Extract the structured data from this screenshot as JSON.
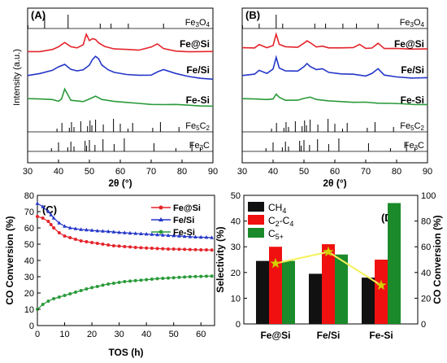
{
  "chart_data": [
    {
      "id": "A",
      "type": "line",
      "panel_label": "(A)",
      "xlabel": "2θ (°)",
      "ylabel": "Intensity (a.u.)",
      "xlim": [
        30,
        90
      ],
      "x_ticks": [
        "30",
        "40",
        "50",
        "60",
        "70",
        "80",
        "90"
      ],
      "series": [
        {
          "name": "Fe@Si",
          "color": "#e4242b",
          "x": [
            30,
            34,
            38,
            40,
            42,
            44,
            46,
            48,
            49,
            50,
            51,
            52,
            53,
            55,
            58,
            62,
            66,
            70,
            72,
            74,
            78,
            82,
            86,
            90
          ],
          "y": [
            0.25,
            0.28,
            0.35,
            0.45,
            0.62,
            0.45,
            0.42,
            0.55,
            0.95,
            0.7,
            0.78,
            0.72,
            0.6,
            0.45,
            0.38,
            0.34,
            0.32,
            0.45,
            0.58,
            0.4,
            0.3,
            0.28,
            0.27,
            0.26
          ]
        },
        {
          "name": "Fe/Si",
          "color": "#2436c8",
          "x": [
            30,
            34,
            38,
            40,
            42,
            44,
            46,
            48,
            50,
            51,
            52,
            53,
            54,
            56,
            58,
            62,
            66,
            70,
            72,
            74,
            78,
            82,
            86,
            90
          ],
          "y": [
            0.35,
            0.4,
            0.5,
            0.62,
            0.72,
            0.55,
            0.48,
            0.52,
            0.7,
            0.85,
            0.95,
            0.9,
            0.7,
            0.55,
            0.45,
            0.38,
            0.35,
            0.38,
            0.45,
            0.55,
            0.4,
            0.3,
            0.25,
            0.22
          ]
        },
        {
          "name": "Fe-Si",
          "color": "#2a9a3a",
          "x": [
            30,
            34,
            38,
            40,
            41,
            42,
            44,
            48,
            50,
            52,
            54,
            58,
            62,
            66,
            70,
            74,
            78,
            82,
            86,
            90
          ],
          "y": [
            0.5,
            0.48,
            0.45,
            0.42,
            0.48,
            0.85,
            0.45,
            0.4,
            0.5,
            0.58,
            0.45,
            0.38,
            0.35,
            0.32,
            0.3,
            0.3,
            0.28,
            0.25,
            0.25,
            0.22
          ]
        }
      ],
      "reference_patterns": [
        {
          "name": "Fe3O4",
          "x": [
            30.1,
            35.5,
            43.1,
            53.5,
            57.0,
            62.6,
            74.0
          ]
        },
        {
          "name": "Fe5C2",
          "x": [
            39.5,
            41.1,
            43.5,
            44.2,
            45.0,
            47.2,
            49.4,
            50.2,
            50.8,
            52.0,
            54.5,
            57.8,
            60.0,
            62.5,
            64.0,
            70.5,
            73.0,
            79.0
          ]
        },
        {
          "name": "Fe3C",
          "x": [
            37.7,
            40.0,
            43.0,
            44.0,
            45.0,
            48.6,
            49.1,
            50.0,
            51.8,
            54.4,
            58.0,
            61.3,
            70.9,
            78.0,
            83.2,
            85.9
          ]
        }
      ]
    },
    {
      "id": "B",
      "type": "line",
      "panel_label": "(B)",
      "xlabel": "2θ (°)",
      "ylabel": "",
      "xlim": [
        30,
        90
      ],
      "x_ticks": [
        "30",
        "40",
        "50",
        "60",
        "70",
        "80",
        "90"
      ],
      "series": [
        {
          "name": "Fe@Si",
          "color": "#e4242b",
          "x": [
            30,
            34,
            35.5,
            38,
            40,
            41,
            42,
            44,
            48,
            50,
            51,
            52,
            54,
            56,
            58,
            62,
            66,
            68,
            70,
            72,
            74,
            76,
            80,
            85,
            90
          ],
          "y": [
            0.4,
            0.42,
            0.55,
            0.42,
            0.5,
            0.92,
            0.55,
            0.45,
            0.45,
            0.6,
            0.7,
            0.6,
            0.45,
            0.48,
            0.42,
            0.4,
            0.42,
            0.55,
            0.4,
            0.42,
            0.6,
            0.4,
            0.38,
            0.37,
            0.36
          ]
        },
        {
          "name": "Fe/Si",
          "color": "#2436c8",
          "x": [
            30,
            34,
            35.5,
            38,
            40,
            41,
            42,
            44,
            48,
            50,
            51,
            52,
            54,
            56,
            58,
            62,
            66,
            70,
            72,
            74,
            76,
            80,
            85,
            90
          ],
          "y": [
            0.35,
            0.38,
            0.5,
            0.4,
            0.55,
            0.92,
            0.6,
            0.5,
            0.48,
            0.65,
            0.72,
            0.62,
            0.55,
            0.58,
            0.45,
            0.4,
            0.38,
            0.35,
            0.4,
            0.58,
            0.38,
            0.3,
            0.28,
            0.27
          ]
        },
        {
          "name": "Fe-Si",
          "color": "#2a9a3a",
          "x": [
            30,
            34,
            38,
            40,
            41,
            42,
            44,
            48,
            50,
            52,
            54,
            58,
            62,
            66,
            70,
            74,
            78,
            82,
            86,
            90
          ],
          "y": [
            0.5,
            0.48,
            0.45,
            0.5,
            0.65,
            0.55,
            0.45,
            0.45,
            0.52,
            0.55,
            0.45,
            0.4,
            0.38,
            0.36,
            0.38,
            0.35,
            0.32,
            0.3,
            0.3,
            0.28
          ]
        }
      ],
      "reference_patterns": [
        {
          "name": "Fe3O4",
          "x": [
            30.1,
            35.5,
            41.0,
            43.1,
            53.5,
            57.0,
            62.6,
            67.0,
            74.0
          ]
        },
        {
          "name": "Fe5C2",
          "x": [
            39.5,
            41.1,
            43.5,
            44.2,
            45.0,
            47.2,
            49.4,
            50.2,
            50.8,
            52.0,
            54.5,
            57.8,
            60.0,
            62.5,
            64.0,
            70.5,
            73.0,
            79.0
          ]
        },
        {
          "name": "Fe3C",
          "x": [
            37.7,
            40.0,
            43.0,
            44.0,
            45.0,
            48.6,
            49.1,
            50.0,
            51.8,
            54.4,
            58.0,
            61.3,
            70.9,
            78.0,
            83.2,
            85.9
          ]
        }
      ]
    },
    {
      "id": "C",
      "type": "line",
      "panel_label": "(C)",
      "xlabel": "TOS (h)",
      "ylabel": "CO Conversion (%)",
      "xlim": [
        0,
        65
      ],
      "ylim": [
        0,
        80
      ],
      "x_ticks": [
        "0",
        "10",
        "20",
        "30",
        "40",
        "50",
        "60"
      ],
      "y_ticks": [
        "0",
        "10",
        "20",
        "30",
        "40",
        "50",
        "60",
        "70",
        "80"
      ],
      "legend_position": "top-right",
      "series": [
        {
          "name": "Fe@Si",
          "color": "#e4242b",
          "marker": "circle",
          "x": [
            0,
            2,
            4,
            5,
            6,
            8,
            10,
            12,
            14,
            16,
            18,
            20,
            22,
            24,
            26,
            28,
            30,
            32,
            34,
            36,
            38,
            40,
            42,
            44,
            46,
            48,
            50,
            52,
            54,
            56,
            58,
            60,
            62,
            64
          ],
          "y": [
            67,
            66,
            64,
            62,
            60,
            57,
            55,
            54,
            53,
            52,
            51.5,
            51,
            50.5,
            50,
            49.5,
            49,
            48.8,
            48.5,
            48.3,
            48,
            47.8,
            47.6,
            47.5,
            47.3,
            47.2,
            47,
            47,
            46.9,
            46.8,
            46.7,
            46.6,
            46.5,
            46.5,
            46.4
          ]
        },
        {
          "name": "Fe/Si",
          "color": "#2436c8",
          "marker": "triangle",
          "x": [
            0,
            2,
            4,
            5,
            6,
            8,
            10,
            12,
            14,
            16,
            18,
            20,
            22,
            24,
            26,
            28,
            30,
            32,
            34,
            36,
            38,
            40,
            42,
            44,
            46,
            48,
            50,
            52,
            54,
            56,
            58,
            60,
            62,
            64
          ],
          "y": [
            75,
            73,
            70,
            68,
            66,
            63,
            61,
            60,
            59.5,
            59,
            58.8,
            58.5,
            58.2,
            58,
            57.8,
            57.5,
            57.2,
            57,
            56.8,
            56.6,
            56.4,
            56.2,
            56,
            55.8,
            55.6,
            55.4,
            55.2,
            55,
            54.8,
            54.6,
            54.4,
            54.3,
            54.2,
            54
          ]
        },
        {
          "name": "Fe-Si",
          "color": "#2a9a3a",
          "marker": "circle",
          "x": [
            0,
            2,
            4,
            6,
            8,
            10,
            12,
            14,
            16,
            18,
            20,
            22,
            24,
            26,
            28,
            30,
            32,
            34,
            36,
            38,
            40,
            42,
            44,
            46,
            48,
            50,
            52,
            54,
            56,
            58,
            60,
            62,
            64
          ],
          "y": [
            10,
            13,
            15,
            16.5,
            17.5,
            18.5,
            19.5,
            20.5,
            21.5,
            22.5,
            23.3,
            24,
            24.8,
            25.5,
            26,
            26.5,
            27,
            27.3,
            27.6,
            27.9,
            28.2,
            28.5,
            28.8,
            29,
            29.2,
            29.4,
            29.6,
            29.8,
            30,
            30.1,
            30.2,
            30.3,
            30.4
          ]
        }
      ]
    },
    {
      "id": "D",
      "type": "bar",
      "panel_label": "(D)",
      "categories": [
        "Fe@Si",
        "Fe/Si",
        "Fe-Si"
      ],
      "ylabel": "Selectivity (%)",
      "y2label": "CO Conversion (%)",
      "ylim": [
        0,
        50
      ],
      "y2lim": [
        0,
        100
      ],
      "y_ticks": [
        "0",
        "10",
        "20",
        "30",
        "40",
        "50"
      ],
      "y2_ticks": [
        "0",
        "20",
        "40",
        "60",
        "80",
        "100"
      ],
      "legend_position": "top-left",
      "series": [
        {
          "name": "CH4",
          "label_main": "CH",
          "label_sub": "4",
          "color": "#111111",
          "values": [
            24.5,
            19.5,
            18
          ]
        },
        {
          "name": "C2-C4",
          "label_main": "C",
          "label_sub": "2",
          "label_mid": "-C",
          "label_sub2": "4",
          "color": "#f01010",
          "values": [
            30,
            31,
            25
          ]
        },
        {
          "name": "C5+",
          "label_main": "C",
          "label_sub": "5+",
          "color": "#1b8a2a",
          "values": [
            24.5,
            27,
            47
          ]
        }
      ],
      "overlay_line": {
        "name": "CO Conversion",
        "axis": "right",
        "color": "#f5f25a",
        "marker_color": "#d8d000",
        "values": [
          47,
          56,
          30
        ]
      }
    }
  ]
}
